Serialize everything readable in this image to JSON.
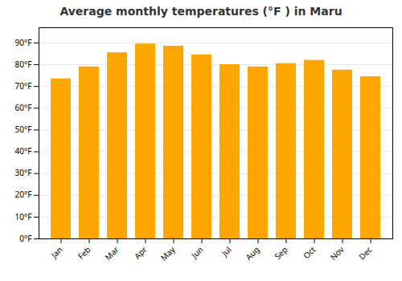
{
  "chart_data": {
    "type": "bar",
    "title": "Average monthly temperatures (°F ) in Maru",
    "categories": [
      "Jan",
      "Feb",
      "Mar",
      "Apr",
      "May",
      "Jun",
      "Jul",
      "Aug",
      "Sep",
      "Oct",
      "Nov",
      "Dec"
    ],
    "values": [
      73.5,
      79.0,
      85.5,
      89.5,
      88.5,
      84.5,
      80.0,
      79.0,
      80.5,
      82.0,
      77.5,
      74.5
    ],
    "color": "#FFA500",
    "ylim": [
      0,
      97
    ],
    "yticks": [
      {
        "value": 0,
        "label": "0°F"
      },
      {
        "value": 10,
        "label": "10°F"
      },
      {
        "value": 20,
        "label": "20°F"
      },
      {
        "value": 30,
        "label": "30°F"
      },
      {
        "value": 40,
        "label": "40°F"
      },
      {
        "value": 50,
        "label": "50°F"
      },
      {
        "value": 60,
        "label": "60°F"
      },
      {
        "value": 70,
        "label": "70°F"
      },
      {
        "value": 80,
        "label": "80°F"
      },
      {
        "value": 90,
        "label": "90°F"
      }
    ],
    "grid": true
  }
}
